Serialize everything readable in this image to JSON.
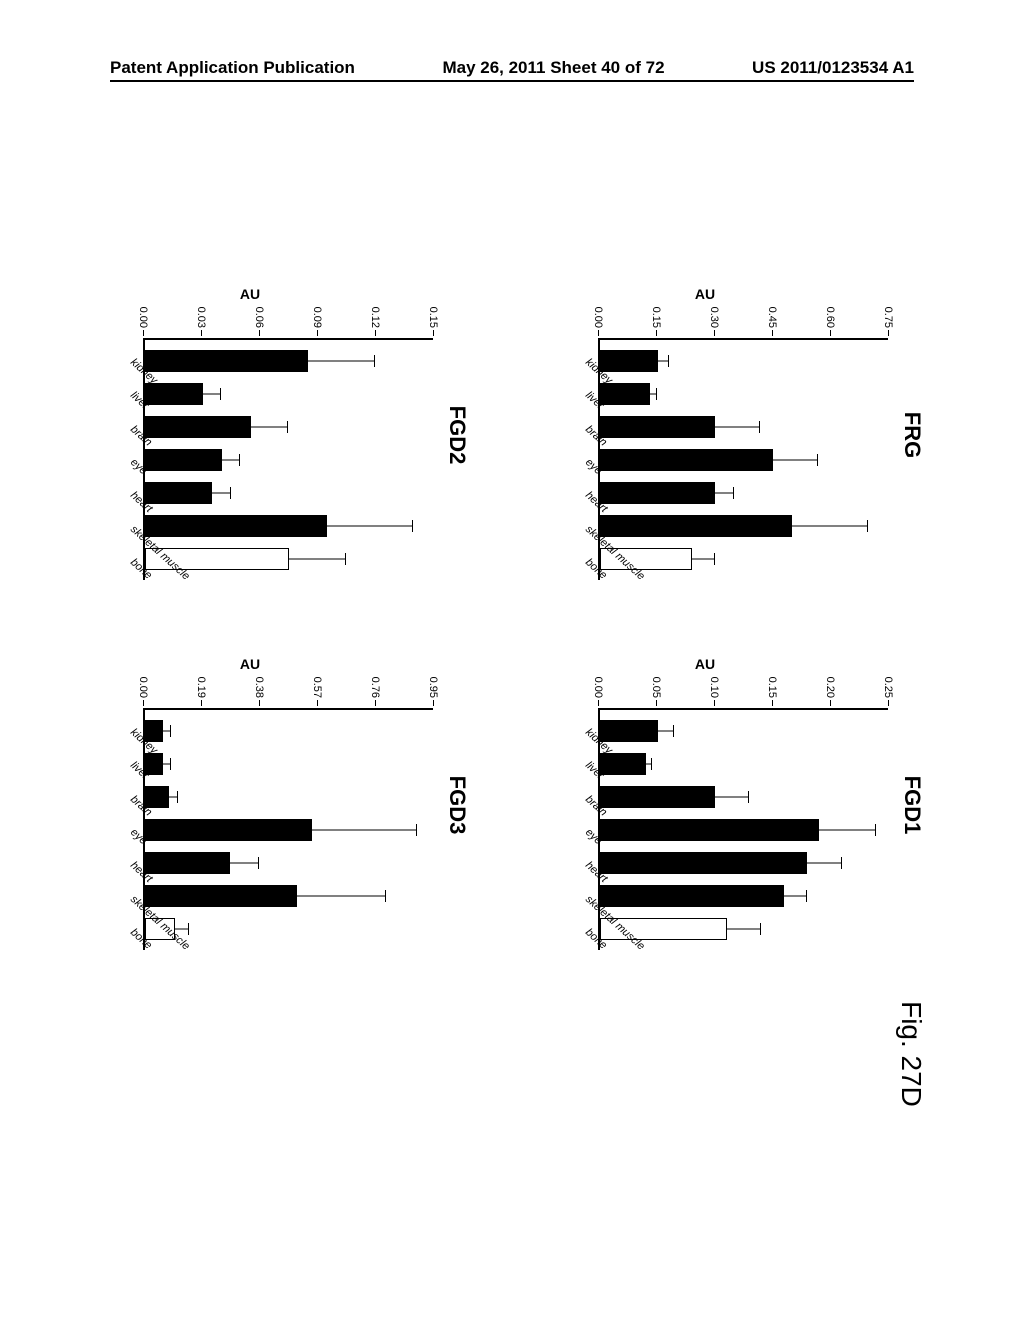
{
  "header": {
    "left": "Patent Application Publication",
    "center": "May 26, 2011  Sheet 40 of 72",
    "right": "US 2011/0123534 A1"
  },
  "figure_label": "Fig. 27D",
  "categories": [
    "kidney",
    "liver",
    "brain",
    "eye",
    "heart",
    "skeletal muscle",
    "bone"
  ],
  "ylabel": "AU",
  "panels": {
    "FRG": {
      "title": "FRG",
      "ymax": 0.75,
      "yticks": [
        0.0,
        0.15,
        0.3,
        0.45,
        0.6,
        0.75
      ],
      "values": [
        0.15,
        0.13,
        0.3,
        0.45,
        0.3,
        0.5,
        0.24
      ],
      "errors": [
        0.03,
        0.02,
        0.12,
        0.12,
        0.05,
        0.2,
        0.06
      ],
      "fills": [
        "#000000",
        "#000000",
        "#000000",
        "#000000",
        "#000000",
        "#000000",
        "#ffffff"
      ],
      "strokes": [
        "#000000",
        "#000000",
        "#000000",
        "#000000",
        "#000000",
        "#000000",
        "#000000"
      ]
    },
    "FGD1": {
      "title": "FGD1",
      "ymax": 0.25,
      "yticks": [
        0.0,
        0.05,
        0.1,
        0.15,
        0.2,
        0.25
      ],
      "values": [
        0.05,
        0.04,
        0.1,
        0.19,
        0.18,
        0.16,
        0.11
      ],
      "errors": [
        0.015,
        0.005,
        0.03,
        0.05,
        0.03,
        0.02,
        0.03
      ],
      "fills": [
        "#000000",
        "#000000",
        "#000000",
        "#000000",
        "#000000",
        "#000000",
        "#ffffff"
      ],
      "strokes": [
        "#000000",
        "#000000",
        "#000000",
        "#000000",
        "#000000",
        "#000000",
        "#000000"
      ]
    },
    "FGD2": {
      "title": "FGD2",
      "ymax": 0.15,
      "yticks": [
        0.0,
        0.03,
        0.06,
        0.09,
        0.12,
        0.15
      ],
      "values": [
        0.085,
        0.03,
        0.055,
        0.04,
        0.035,
        0.095,
        0.075
      ],
      "errors": [
        0.035,
        0.01,
        0.02,
        0.01,
        0.01,
        0.045,
        0.03
      ],
      "fills": [
        "#000000",
        "#000000",
        "#000000",
        "#000000",
        "#000000",
        "#000000",
        "#ffffff"
      ],
      "strokes": [
        "#000000",
        "#000000",
        "#000000",
        "#000000",
        "#000000",
        "#000000",
        "#000000"
      ]
    },
    "FGD3": {
      "title": "FGD3",
      "ymax": 0.95,
      "yticks": [
        0.0,
        0.19,
        0.38,
        0.57,
        0.76,
        0.95
      ],
      "values": [
        0.06,
        0.06,
        0.08,
        0.55,
        0.28,
        0.5,
        0.1
      ],
      "errors": [
        0.03,
        0.03,
        0.03,
        0.35,
        0.1,
        0.3,
        0.05
      ],
      "fills": [
        "#000000",
        "#000000",
        "#000000",
        "#000000",
        "#000000",
        "#000000",
        "#ffffff"
      ],
      "strokes": [
        "#000000",
        "#000000",
        "#000000",
        "#000000",
        "#000000",
        "#000000",
        "#000000"
      ]
    }
  },
  "layout": [
    "FRG",
    "FGD1",
    "FGD2",
    "FGD3"
  ]
}
